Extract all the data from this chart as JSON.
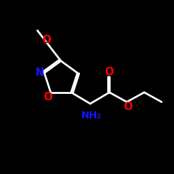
{
  "bg_color": "#000000",
  "line_color": "#FFFFFF",
  "N_color": "#1414FF",
  "O_color": "#FF0000",
  "NH2_color": "#1414FF",
  "line_width": 2.0,
  "font_size_atom": 11,
  "fig_width": 2.5,
  "fig_height": 2.5,
  "dpi": 100,
  "xlim": [
    0,
    10
  ],
  "ylim": [
    0,
    10
  ]
}
